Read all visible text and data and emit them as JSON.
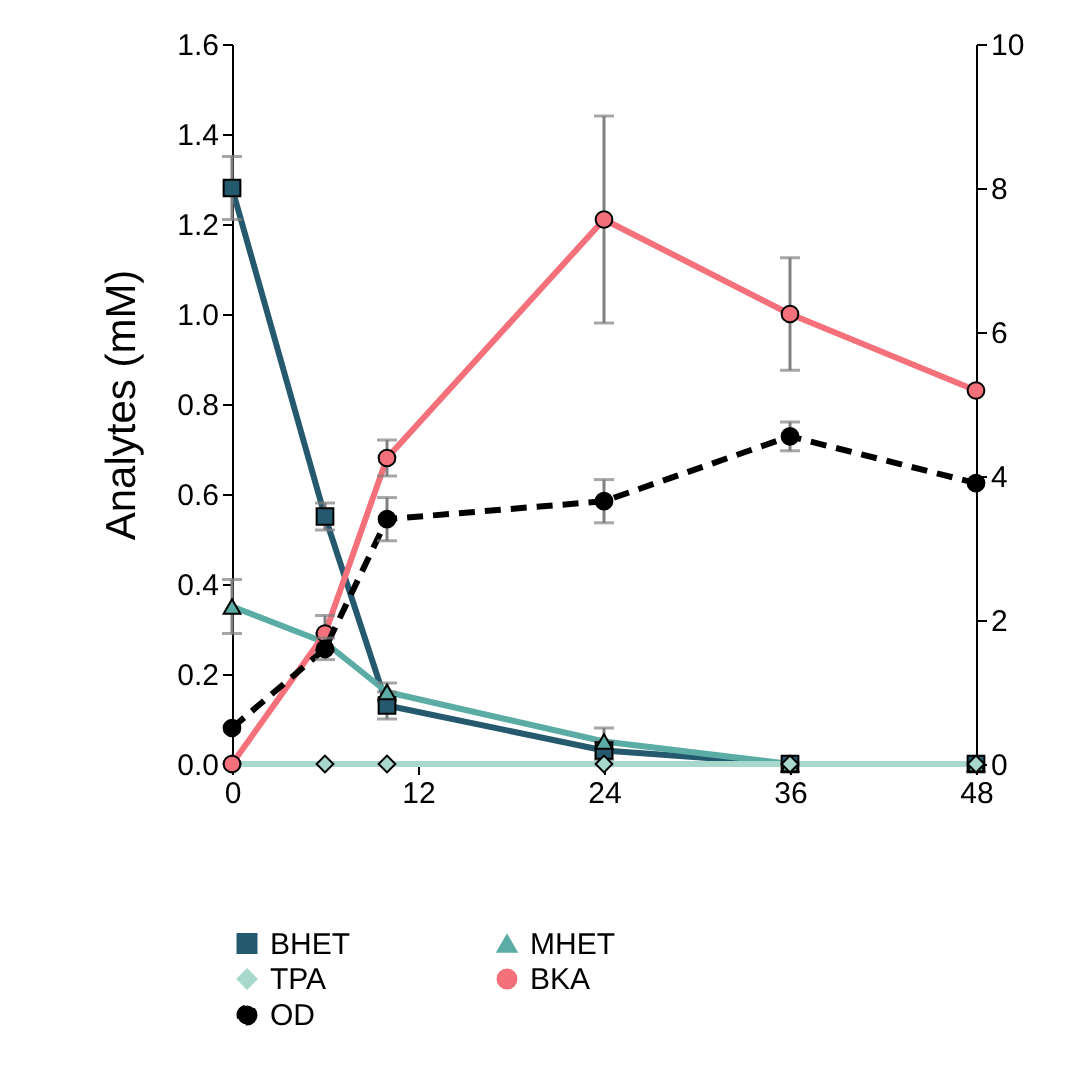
{
  "chart_data": {
    "type": "line",
    "ylabel": "Analytes (mM)",
    "x": [
      0,
      6,
      10,
      24,
      36,
      48
    ],
    "xlim": [
      0,
      48
    ],
    "xticks": [
      0,
      12,
      24,
      36,
      48
    ],
    "ylim": [
      0,
      1.6
    ],
    "yticks": [
      {
        "value": 0,
        "label": "0.0"
      },
      {
        "value": 0.2,
        "label": "0.2"
      },
      {
        "value": 0.4,
        "label": "0.4"
      },
      {
        "value": 0.6,
        "label": "0.6"
      },
      {
        "value": 0.8,
        "label": "0.8"
      },
      {
        "value": 1,
        "label": "1.0"
      },
      {
        "value": 1.2,
        "label": "1.2"
      },
      {
        "value": 1.4,
        "label": "1.4"
      },
      {
        "value": 1.6,
        "label": "1.6"
      }
    ],
    "y2lim": [
      0,
      10
    ],
    "y2ticks": [
      0,
      2,
      4,
      6,
      8,
      10
    ],
    "grid": false,
    "legend": "bottom",
    "series": [
      {
        "name": "BHET",
        "color": "#24596e",
        "marker": "square",
        "values": [
          1.28,
          0.55,
          0.13,
          0.03,
          0,
          0
        ],
        "errors": [
          0.07,
          0.03,
          0.03,
          0.02,
          null,
          null
        ]
      },
      {
        "name": "MHET",
        "color": "#5aaca4",
        "marker": "triangle",
        "values": [
          0.35,
          0.27,
          0.16,
          0.05,
          0,
          0
        ],
        "errors": [
          0.06,
          0.02,
          0.02,
          0.03,
          null,
          null
        ]
      },
      {
        "name": "TPA",
        "color": "#a8d8cc",
        "marker": "diamond",
        "values": [
          0,
          0,
          0,
          0,
          0,
          0
        ]
      },
      {
        "name": "BKA",
        "color": "#f4707a",
        "marker": "circle",
        "values": [
          0,
          0.29,
          0.68,
          1.21,
          1.0,
          0.83
        ],
        "errors": [
          null,
          0.04,
          0.04,
          0.23,
          0.125,
          null
        ]
      },
      {
        "name": "OD",
        "color": "#000000",
        "marker": "circle",
        "line_style": "dashed",
        "axis": "y2",
        "values": [
          0.5,
          1.6,
          3.4,
          3.65,
          4.55,
          3.9
        ],
        "errors": [
          null,
          0.15,
          0.3,
          0.3,
          0.2,
          null
        ]
      }
    ]
  }
}
